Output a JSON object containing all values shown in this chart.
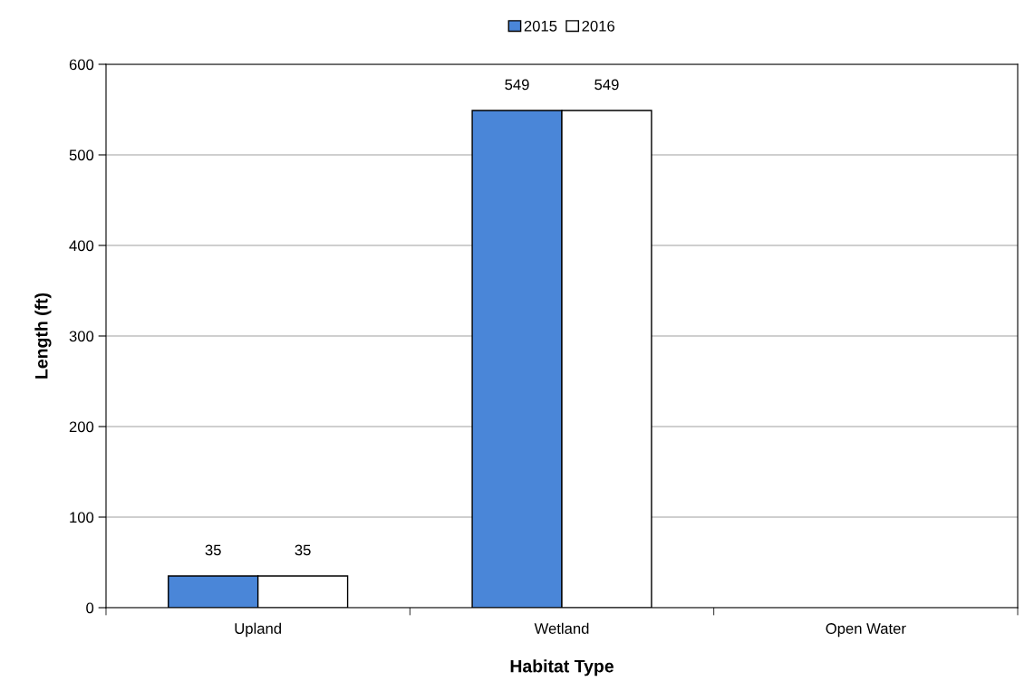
{
  "chart_data": {
    "type": "bar",
    "xlabel": "Habitat Type",
    "ylabel": "Length (ft)",
    "categories": [
      "Upland",
      "Wetland",
      "Open Water"
    ],
    "series": [
      {
        "name": "2015",
        "color": "#4a86d8",
        "values": [
          35,
          549,
          null
        ],
        "value_labels": [
          "35",
          "549",
          null
        ]
      },
      {
        "name": "2016",
        "color": "#ffffff",
        "values": [
          35,
          549,
          null
        ],
        "value_labels": [
          "35",
          "549",
          null
        ]
      }
    ],
    "ylim": [
      0,
      600
    ],
    "yticks": [
      0,
      100,
      200,
      300,
      400,
      500,
      600
    ],
    "grid": "y",
    "legend": "top"
  }
}
